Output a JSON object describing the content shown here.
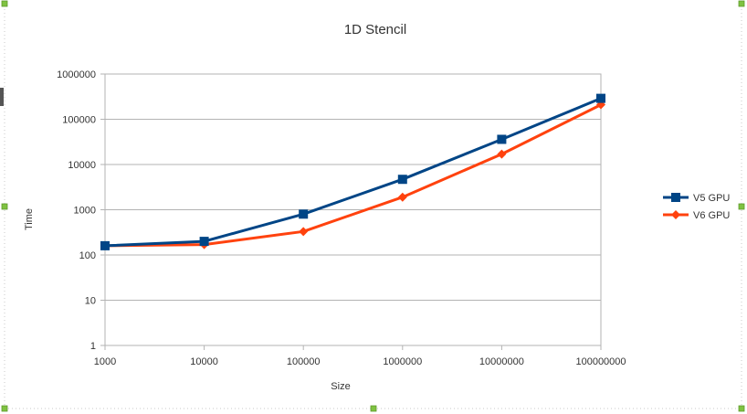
{
  "chart_data": {
    "type": "line",
    "title": "1D Stencil",
    "xlabel": "Size",
    "ylabel": "Time",
    "x_scale": "log",
    "y_scale": "log",
    "x": [
      1000,
      10000,
      100000,
      1000000,
      10000000,
      100000000
    ],
    "x_tick_labels": [
      "1000",
      "10000",
      "100000",
      "1000000",
      "10000000",
      "100000000"
    ],
    "ylim": [
      1,
      1000000
    ],
    "y_ticks": [
      1,
      10,
      100,
      1000,
      10000,
      100000,
      1000000
    ],
    "y_tick_labels": [
      "1",
      "10",
      "100",
      "1000",
      "10000",
      "100000",
      "1000000"
    ],
    "grid": true,
    "legend_position": "right",
    "series": [
      {
        "name": "V5 GPU",
        "color": "#004586",
        "marker": "square",
        "values": [
          160,
          200,
          800,
          4700,
          36000,
          290000
        ]
      },
      {
        "name": "V6 GPU",
        "color": "#ff420e",
        "marker": "diamond",
        "values": [
          160,
          170,
          330,
          1900,
          17000,
          210000
        ]
      }
    ]
  }
}
